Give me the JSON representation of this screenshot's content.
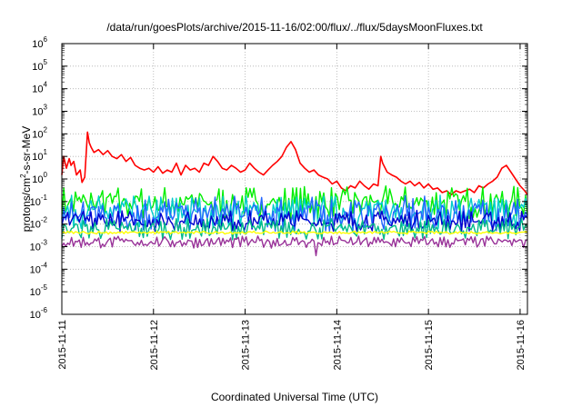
{
  "chart_data": {
    "type": "line",
    "title": "/data/run/goesPlots/archive/2015-11-16/02:00/flux/../flux/5daysMoonFluxes.txt",
    "xlabel": "Coordinated Universal Time (UTC)",
    "ylabel": "protons/cm²-s-sr-MeV",
    "y_scale": "log",
    "ylim_exponents": [
      -6,
      6
    ],
    "xlim_days": [
      0,
      5.08
    ],
    "x_ticks": [
      {
        "day": 0,
        "label": "2015-11-11"
      },
      {
        "day": 1,
        "label": "2015-11-12"
      },
      {
        "day": 2,
        "label": "2015-11-13"
      },
      {
        "day": 3,
        "label": "2015-11-14"
      },
      {
        "day": 4,
        "label": "2015-11-15"
      },
      {
        "day": 5,
        "label": "2015-11-16"
      }
    ],
    "y_ticks": [
      {
        "exp": 6,
        "base": "10",
        "sup": "6"
      },
      {
        "exp": 5,
        "base": "10",
        "sup": "5"
      },
      {
        "exp": 4,
        "base": "10",
        "sup": "4"
      },
      {
        "exp": 3,
        "base": "10",
        "sup": "3"
      },
      {
        "exp": 2,
        "base": "10",
        "sup": "2"
      },
      {
        "exp": 1,
        "base": "10",
        "sup": "1"
      },
      {
        "exp": 0,
        "base": "10",
        "sup": "0"
      },
      {
        "exp": -1,
        "base": "10",
        "sup": "-1"
      },
      {
        "exp": -2,
        "base": "10",
        "sup": "-2"
      },
      {
        "exp": -3,
        "base": "10",
        "sup": "-3"
      },
      {
        "exp": -4,
        "base": "10",
        "sup": "-4"
      },
      {
        "exp": -5,
        "base": "10",
        "sup": "-5"
      },
      {
        "exp": -6,
        "base": "10",
        "sup": "-6"
      }
    ],
    "grid": true,
    "series": [
      {
        "color": "#ff0000",
        "x": [
          0,
          0.02,
          0.05,
          0.08,
          0.1,
          0.13,
          0.16,
          0.2,
          0.22,
          0.25,
          0.28,
          0.3,
          0.32,
          0.35,
          0.4,
          0.45,
          0.5,
          0.55,
          0.6,
          0.65,
          0.7,
          0.75,
          0.8,
          0.85,
          0.9,
          0.95,
          1.0,
          1.05,
          1.1,
          1.15,
          1.2,
          1.25,
          1.3,
          1.35,
          1.4,
          1.45,
          1.5,
          1.55,
          1.6,
          1.65,
          1.7,
          1.75,
          1.8,
          1.85,
          1.9,
          1.95,
          2.0,
          2.05,
          2.1,
          2.15,
          2.2,
          2.25,
          2.3,
          2.35,
          2.4,
          2.45,
          2.5,
          2.55,
          2.6,
          2.65,
          2.7,
          2.75,
          2.8,
          2.85,
          2.9,
          2.95,
          3.0,
          3.05,
          3.1,
          3.15,
          3.2,
          3.25,
          3.3,
          3.35,
          3.4,
          3.45,
          3.48,
          3.5,
          3.55,
          3.6,
          3.65,
          3.7,
          3.75,
          3.8,
          3.85,
          3.9,
          3.95,
          4.0,
          4.05,
          4.1,
          4.15,
          4.2,
          4.25,
          4.3,
          4.35,
          4.4,
          4.45,
          4.5,
          4.55,
          4.6,
          4.65,
          4.7,
          4.75,
          4.8,
          4.85,
          4.9,
          4.95,
          5.0,
          5.05,
          5.08
        ],
        "y": [
          1.5,
          10,
          3,
          8,
          4,
          6,
          1.5,
          2.5,
          0.7,
          1.2,
          120,
          40,
          25,
          15,
          20,
          12,
          18,
          10,
          8,
          12,
          6,
          9,
          4,
          3,
          2.5,
          3,
          2,
          3.5,
          1.8,
          2.5,
          2,
          5,
          1.5,
          4,
          2.5,
          3,
          2,
          5,
          4,
          10,
          6,
          3,
          2.5,
          4,
          3,
          2,
          2.5,
          5,
          3,
          2,
          1.5,
          2.5,
          4,
          6,
          10,
          25,
          45,
          20,
          5,
          3,
          2,
          2.5,
          1.5,
          1.2,
          1,
          0.6,
          0.8,
          0.4,
          0.3,
          0.5,
          0.4,
          0.8,
          0.5,
          0.35,
          0.6,
          0.5,
          10,
          5,
          2,
          1.5,
          1.2,
          0.8,
          0.6,
          0.8,
          0.5,
          0.7,
          0.4,
          0.6,
          0.35,
          0.4,
          0.25,
          0.3,
          0.2,
          0.3,
          0.25,
          0.3,
          0.35,
          0.25,
          0.5,
          0.4,
          0.6,
          0.8,
          1.2,
          3,
          4,
          2,
          1,
          0.5,
          0.3,
          0.2
        ]
      },
      {
        "color": "#00ee00",
        "level": 0.09,
        "spread": 0.55
      },
      {
        "color": "#00cccc",
        "level": 0.035,
        "spread": 0.55
      },
      {
        "color": "#2266ff",
        "level": 0.028,
        "spread": 0.6
      },
      {
        "color": "#0000cc",
        "level": 0.014,
        "spread": 0.35
      },
      {
        "color": "#00bb88",
        "level": 0.006,
        "spread": 0.35
      },
      {
        "color": "#ffff00",
        "level": 0.0042,
        "spread": 0.05
      },
      {
        "color": "#993399",
        "level": 0.0016,
        "spread": 0.2
      }
    ]
  }
}
